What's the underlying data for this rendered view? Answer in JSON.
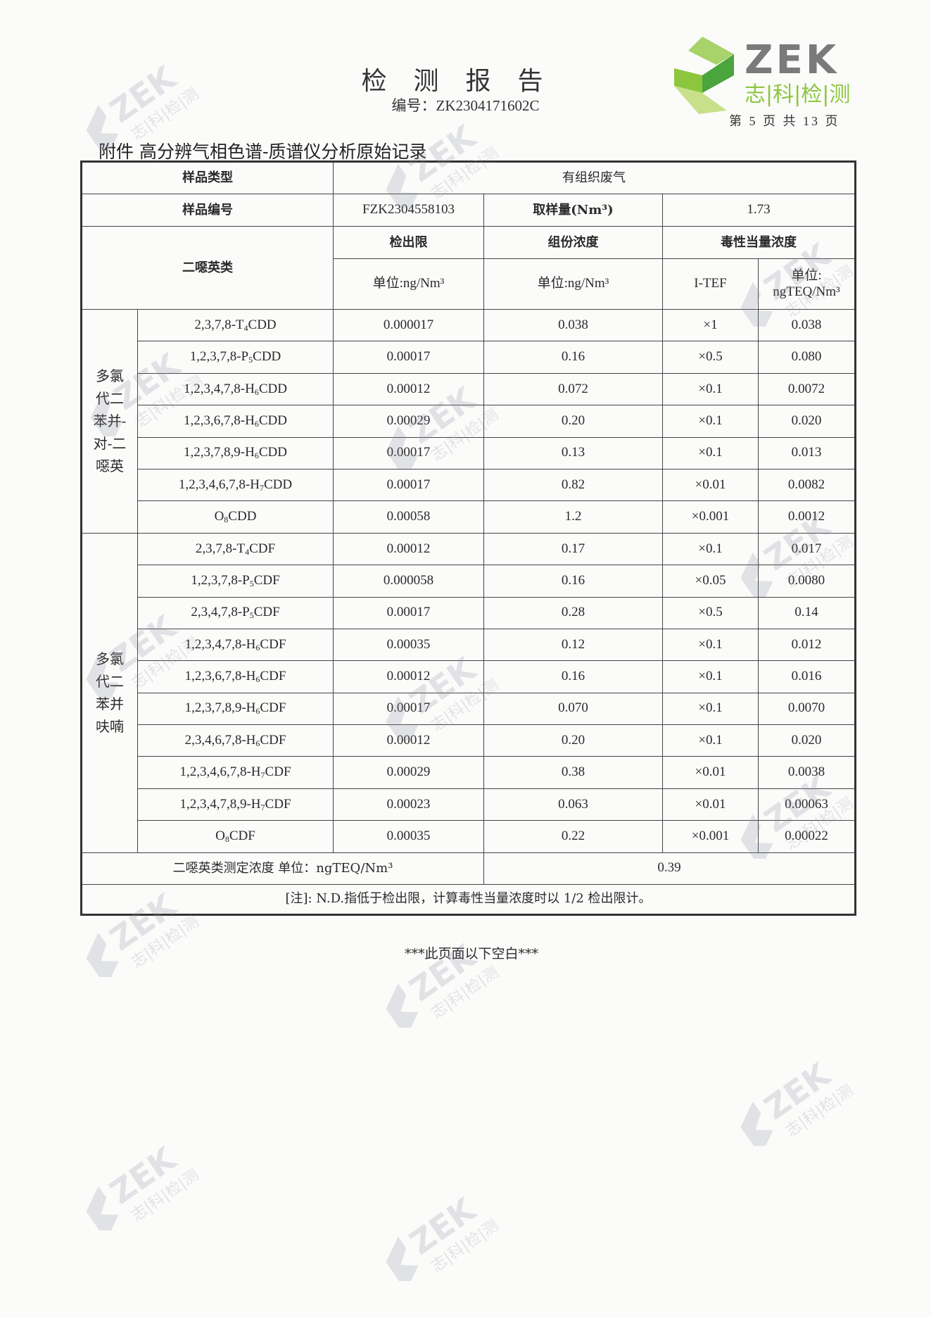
{
  "header": {
    "title": "检测报告",
    "report_no": "编号：ZK2304171602C",
    "page_no": "第 5 页 共 13 页",
    "logo_text": "ZEK",
    "logo_sub": "志|科|检|测",
    "colors": {
      "logo_green": "#8cc63f",
      "logo_dark_green": "#4aa53c",
      "logo_gray": "#7a7a7a"
    }
  },
  "annex_title": "附件 高分辨气相色谱-质谱仪分析原始记录",
  "table": {
    "sample_type_label": "样品类型",
    "sample_type_value": "有组织废气",
    "sample_no_label": "样品编号",
    "sample_no_value": "FZK2304558103",
    "sample_volume_label": "取样量(Nm³)",
    "sample_volume_value": "1.73",
    "dioxin_label": "二噁英类",
    "col_detection_limit": "检出限",
    "col_concentration": "组份浓度",
    "col_teq": "毒性当量浓度",
    "unit_ng": "单位:ng/Nm³",
    "unit_ng2": "单位:ng/Nm³",
    "col_itef": "I-TEF",
    "unit_teq_a": "单位:",
    "unit_teq_b": "ngTEQ/Nm³",
    "groups": [
      {
        "label_lines": [
          "多氯",
          "代二",
          "苯并-",
          "对-二",
          "噁英"
        ],
        "rows": [
          {
            "pre": "2,3,7,8-T",
            "sub": "4",
            "post": "CDD",
            "dl": "0.000017",
            "conc": "0.038",
            "tef": "×1",
            "teq": "0.038"
          },
          {
            "pre": "1,2,3,7,8-P",
            "sub": "5",
            "post": "CDD",
            "dl": "0.00017",
            "conc": "0.16",
            "tef": "×0.5",
            "teq": "0.080"
          },
          {
            "pre": "1,2,3,4,7,8-H",
            "sub": "6",
            "post": "CDD",
            "dl": "0.00012",
            "conc": "0.072",
            "tef": "×0.1",
            "teq": "0.0072"
          },
          {
            "pre": "1,2,3,6,7,8-H",
            "sub": "6",
            "post": "CDD",
            "dl": "0.00029",
            "conc": "0.20",
            "tef": "×0.1",
            "teq": "0.020"
          },
          {
            "pre": "1,2,3,7,8,9-H",
            "sub": "6",
            "post": "CDD",
            "dl": "0.00017",
            "conc": "0.13",
            "tef": "×0.1",
            "teq": "0.013"
          },
          {
            "pre": "1,2,3,4,6,7,8-H",
            "sub": "7",
            "post": "CDD",
            "dl": "0.00017",
            "conc": "0.82",
            "tef": "×0.01",
            "teq": "0.0082"
          },
          {
            "pre": "O",
            "sub": "8",
            "post": "CDD",
            "dl": "0.00058",
            "conc": "1.2",
            "tef": "×0.001",
            "teq": "0.0012"
          }
        ]
      },
      {
        "label_lines": [
          "多氯",
          "代二",
          "苯并",
          "呋喃"
        ],
        "rows": [
          {
            "pre": "2,3,7,8-T",
            "sub": "4",
            "post": "CDF",
            "dl": "0.00012",
            "conc": "0.17",
            "tef": "×0.1",
            "teq": "0.017"
          },
          {
            "pre": "1,2,3,7,8-P",
            "sub": "5",
            "post": "CDF",
            "dl": "0.000058",
            "conc": "0.16",
            "tef": "×0.05",
            "teq": "0.0080"
          },
          {
            "pre": "2,3,4,7,8-P",
            "sub": "5",
            "post": "CDF",
            "dl": "0.00017",
            "conc": "0.28",
            "tef": "×0.5",
            "teq": "0.14"
          },
          {
            "pre": "1,2,3,4,7,8-H",
            "sub": "6",
            "post": "CDF",
            "dl": "0.00035",
            "conc": "0.12",
            "tef": "×0.1",
            "teq": "0.012"
          },
          {
            "pre": "1,2,3,6,7,8-H",
            "sub": "6",
            "post": "CDF",
            "dl": "0.00012",
            "conc": "0.16",
            "tef": "×0.1",
            "teq": "0.016"
          },
          {
            "pre": "1,2,3,7,8,9-H",
            "sub": "6",
            "post": "CDF",
            "dl": "0.00017",
            "conc": "0.070",
            "tef": "×0.1",
            "teq": "0.0070"
          },
          {
            "pre": "2,3,4,6,7,8-H",
            "sub": "6",
            "post": "CDF",
            "dl": "0.00012",
            "conc": "0.20",
            "tef": "×0.1",
            "teq": "0.020"
          },
          {
            "pre": "1,2,3,4,6,7,8-H",
            "sub": "7",
            "post": "CDF",
            "dl": "0.00029",
            "conc": "0.38",
            "tef": "×0.01",
            "teq": "0.0038"
          },
          {
            "pre": "1,2,3,4,7,8,9-H",
            "sub": "7",
            "post": "CDF",
            "dl": "0.00023",
            "conc": "0.063",
            "tef": "×0.01",
            "teq": "0.00063"
          },
          {
            "pre": "O",
            "sub": "8",
            "post": "CDF",
            "dl": "0.00035",
            "conc": "0.22",
            "tef": "×0.001",
            "teq": "0.00022"
          }
        ]
      }
    ],
    "total_label": "二噁英类测定浓度 单位：ngTEQ/Nm³",
    "total_value": "0.39",
    "note": "[注]: N.D.指低于检出限，计算毒性当量浓度时以 1/2 检出限计。"
  },
  "footer_blank": "***此页面以下空白***"
}
